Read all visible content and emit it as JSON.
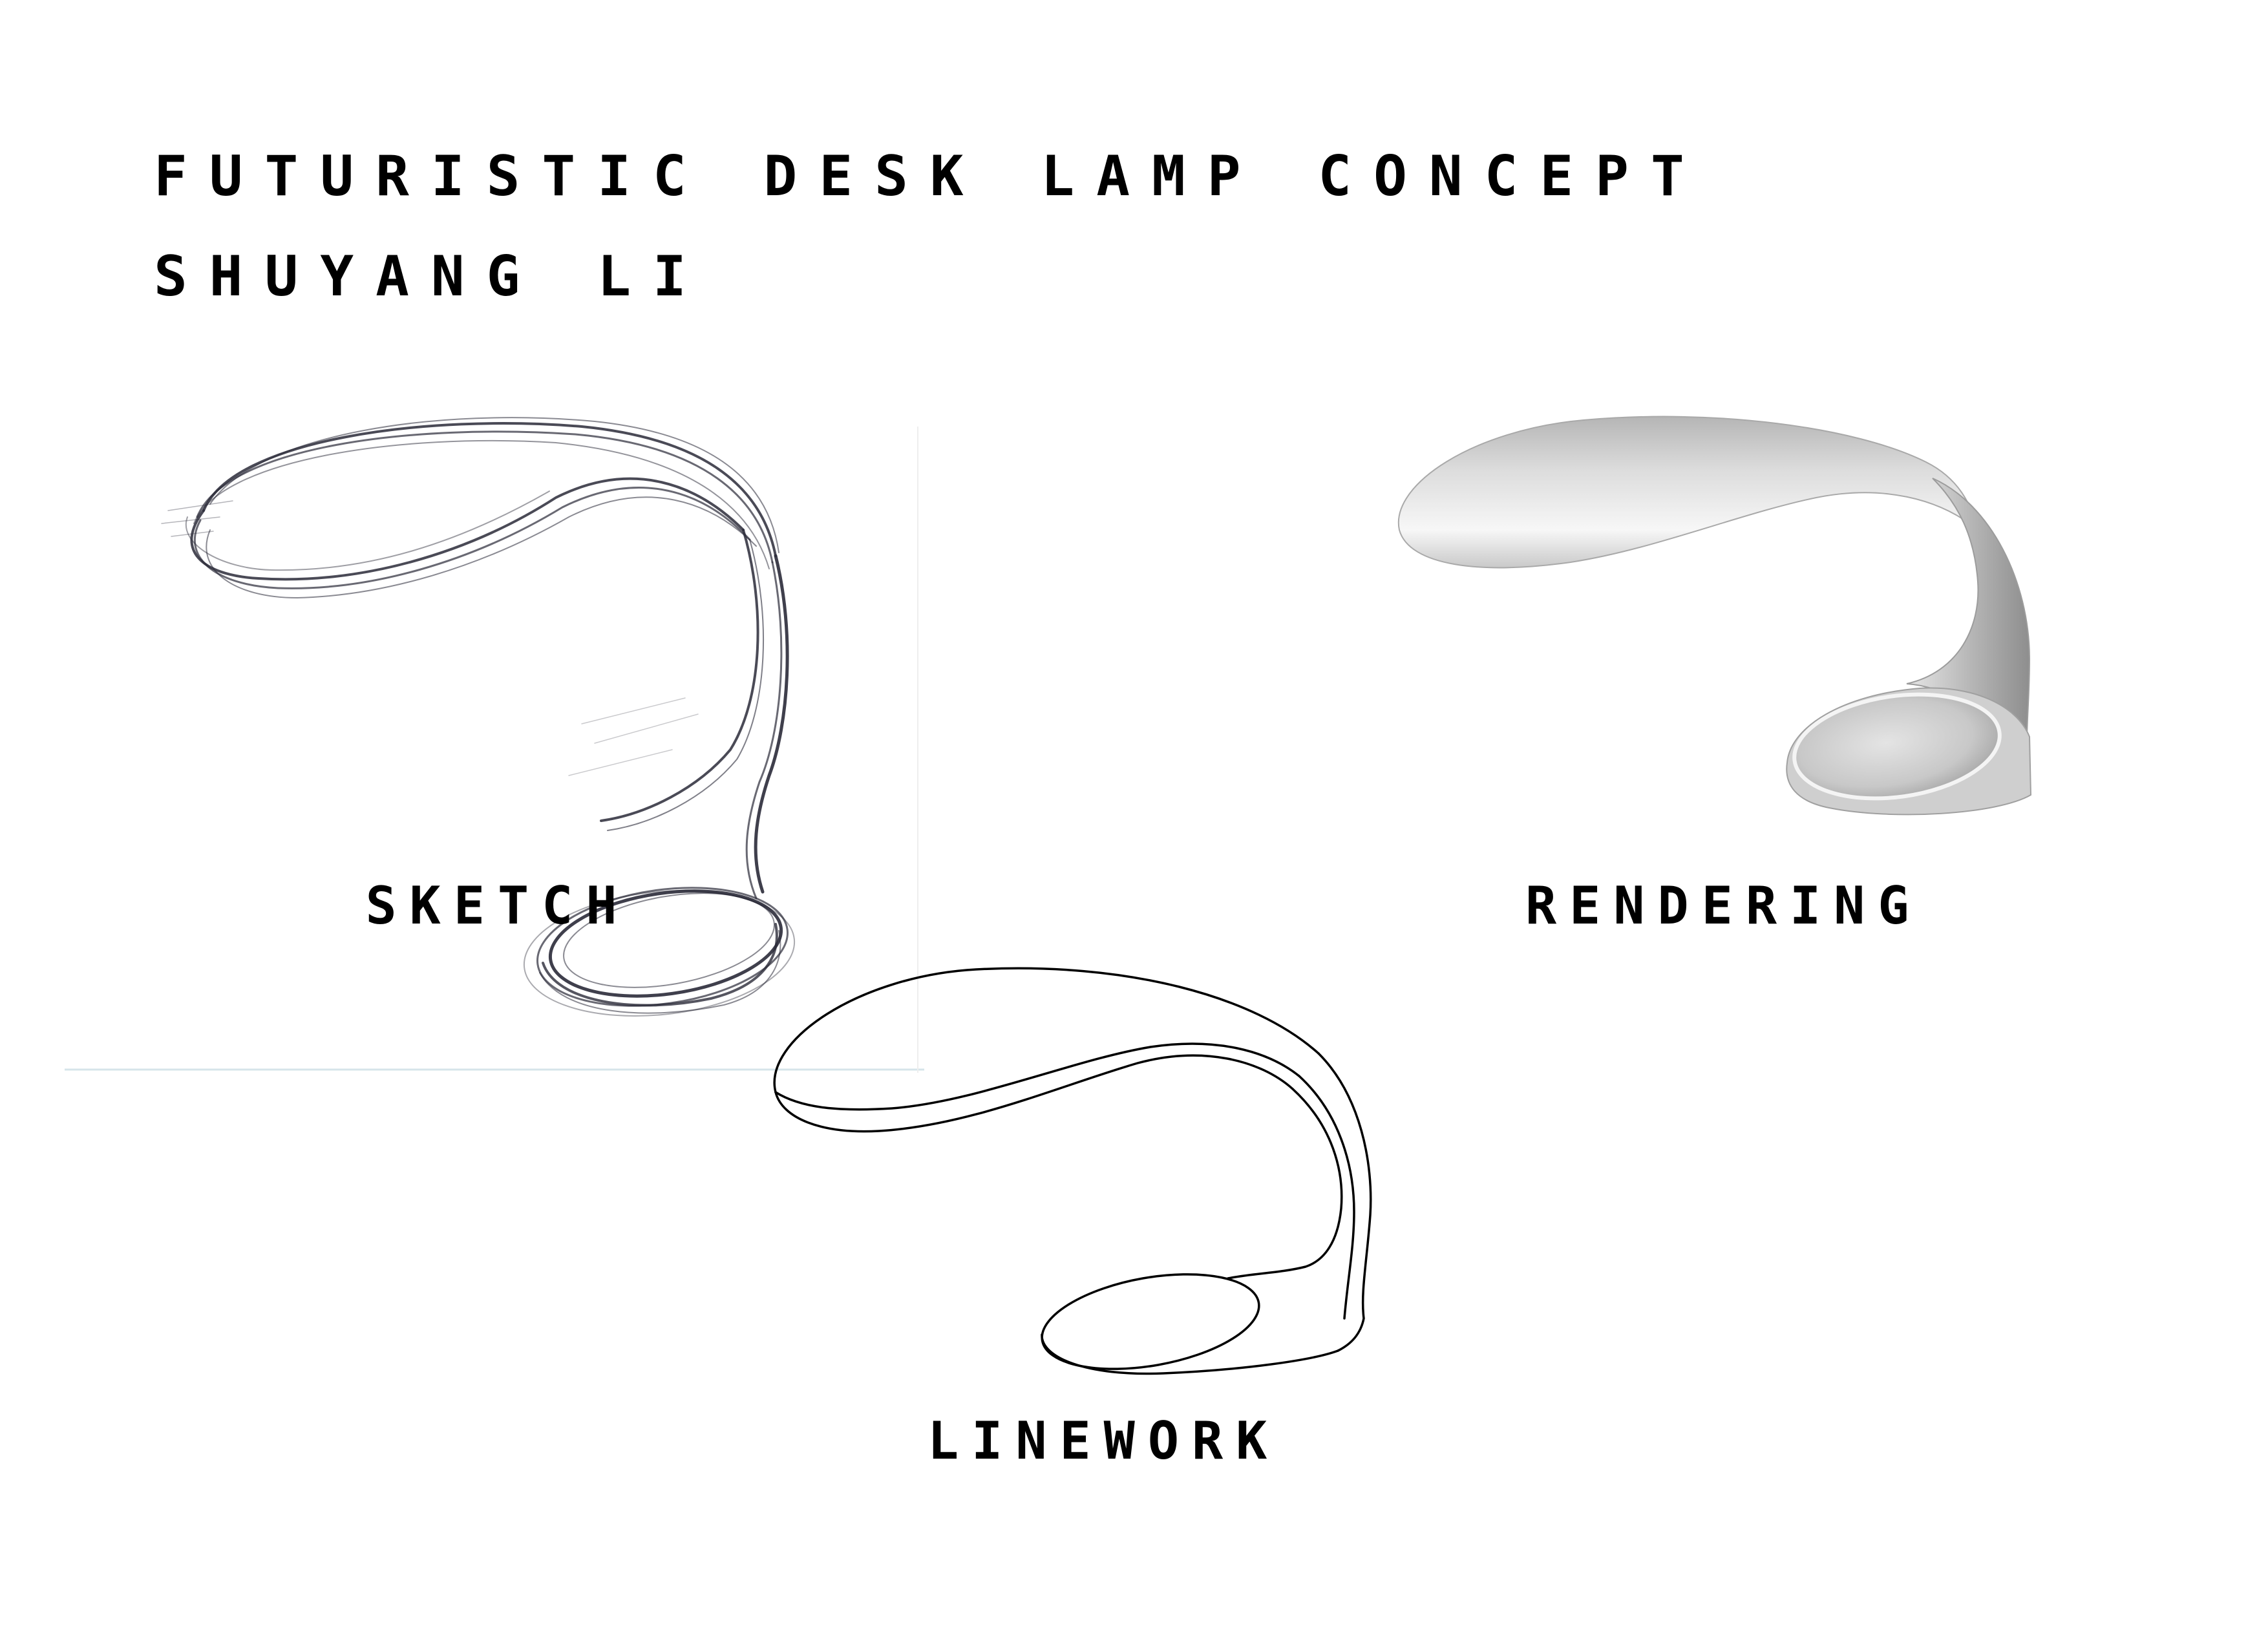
{
  "header": {
    "title": "FUTURISTIC DESK LAMP CONCEPT",
    "author": "SHUYANG LI"
  },
  "panels": {
    "sketch": {
      "caption": "SKETCH"
    },
    "rendering": {
      "caption": "RENDERING"
    },
    "linework": {
      "caption": "LINEWORK"
    }
  },
  "colors": {
    "background": "#ffffff",
    "text": "#000000",
    "sketch_stroke": "#2a2a38",
    "render_light": "#f2f2f2",
    "render_dark": "#9a9a9a"
  }
}
